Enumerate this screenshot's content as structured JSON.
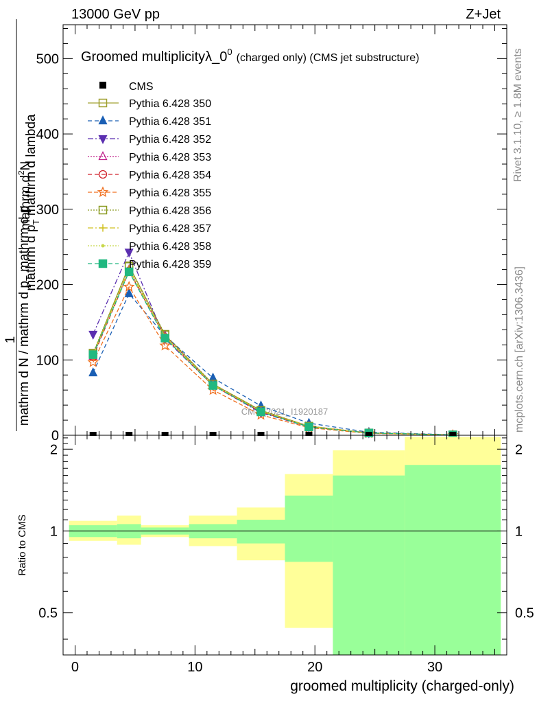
{
  "header": {
    "left": "13000 GeV pp",
    "right": "Z+Jet"
  },
  "side": {
    "rivet": "Rivet 3.1.10, ≥ 1.8M events",
    "mcplots": "mcplots.cern.ch [arXiv:1306.3436]"
  },
  "watermark": "CMS_2021_I1920187",
  "chart_data": [
    {
      "type": "line",
      "title": "Groomed multiplicityλ_0",
      "title_superscript": "0",
      "title_suffix": "(charged only) (CMS jet substructure)",
      "ylabel": {
        "line1": "1",
        "line2_num": "mathrm d",
        "line2_num_sup": "2",
        "line2_num_end": "N",
        "line2_den_a": "mathrm d p",
        "line2_den_sub": "T",
        "line2_den_b": " mathrm d lambda",
        "line3_a": "mathrm d N / mathrm d p",
        "line3_sub": "T",
        "line3_b": " mathrm d p"
      },
      "xlim": [
        -1,
        36
      ],
      "ylim": [
        0,
        545
      ],
      "yticks": [
        0,
        100,
        200,
        300,
        400,
        500
      ],
      "x": [
        1.5,
        4.5,
        7.5,
        11.5,
        15.5,
        19.5,
        24.5,
        31.5
      ],
      "cms": {
        "name": "CMS",
        "values": [
          0,
          0,
          0,
          0,
          0,
          0,
          0,
          0
        ],
        "color": "#000000"
      },
      "series": [
        {
          "name": "Pythia 6.428 350",
          "color": "#a0a030",
          "dash": "",
          "marker": "square-open",
          "values": [
            108,
            225,
            133,
            68,
            33,
            12,
            3,
            0.5
          ]
        },
        {
          "name": "Pythia 6.428 351",
          "color": "#1a5fb4",
          "dash": "6,4",
          "marker": "triangle-up",
          "values": [
            83,
            188,
            132,
            76,
            39,
            16,
            4,
            0.6
          ]
        },
        {
          "name": "Pythia 6.428 352",
          "color": "#5b2fb0",
          "dash": "8,3,2,3",
          "marker": "triangle-down",
          "values": [
            134,
            243,
            128,
            66,
            30,
            11,
            3,
            0.5
          ]
        },
        {
          "name": "Pythia 6.428 353",
          "color": "#c0208a",
          "dash": "2,2",
          "marker": "triangle-open",
          "values": [
            105,
            220,
            132,
            67,
            32,
            12,
            3,
            0.5
          ]
        },
        {
          "name": "Pythia 6.428 354",
          "color": "#d0202a",
          "dash": "6,4",
          "marker": "circle-open",
          "values": [
            104,
            218,
            130,
            66,
            31,
            11,
            3,
            0.5
          ]
        },
        {
          "name": "Pythia 6.428 355",
          "color": "#f07020",
          "dash": "6,3",
          "marker": "star-open",
          "values": [
            97,
            197,
            119,
            60,
            27,
            10,
            2.5,
            0.4
          ]
        },
        {
          "name": "Pythia 6.428 356",
          "color": "#8a9a20",
          "dash": "2,2",
          "marker": "square-open",
          "values": [
            109,
            224,
            134,
            68,
            33,
            12,
            3,
            0.5
          ]
        },
        {
          "name": "Pythia 6.428 357",
          "color": "#d0c020",
          "dash": "8,3,2,3",
          "marker": "cross",
          "values": [
            107,
            221,
            131,
            67,
            32,
            12,
            3,
            0.5
          ]
        },
        {
          "name": "Pythia 6.428 358",
          "color": "#c8d84a",
          "dash": "2,2",
          "marker": "dot",
          "values": [
            106,
            219,
            130,
            66,
            32,
            11,
            3,
            0.5
          ]
        },
        {
          "name": "Pythia 6.428 359",
          "color": "#20b880",
          "dash": "6,4",
          "marker": "square",
          "values": [
            107,
            217,
            129,
            66,
            31,
            11,
            3,
            0.5
          ]
        }
      ]
    },
    {
      "type": "area",
      "ylabel": "Ratio to CMS",
      "xlabel": "groomed multiplicity (charged-only)",
      "xlim": [
        -1,
        36
      ],
      "ylim": [
        0.35,
        2.25
      ],
      "xticks": [
        0,
        10,
        20,
        30
      ],
      "yticks": [
        0.5,
        1,
        2
      ],
      "reference": 1,
      "bins": [
        {
          "lo": -0.5,
          "hi": 3.5,
          "g": [
            0.95,
            1.05
          ],
          "y": [
            0.92,
            1.09
          ]
        },
        {
          "lo": 3.5,
          "hi": 5.5,
          "g": [
            0.94,
            1.06
          ],
          "y": [
            0.89,
            1.14
          ]
        },
        {
          "lo": 5.5,
          "hi": 9.5,
          "g": [
            0.97,
            1.03
          ],
          "y": [
            0.95,
            1.05
          ]
        },
        {
          "lo": 9.5,
          "hi": 13.5,
          "g": [
            0.94,
            1.06
          ],
          "y": [
            0.88,
            1.14
          ]
        },
        {
          "lo": 13.5,
          "hi": 17.5,
          "g": [
            0.9,
            1.1
          ],
          "y": [
            0.78,
            1.22
          ]
        },
        {
          "lo": 17.5,
          "hi": 21.5,
          "g": [
            0.77,
            1.35
          ],
          "y": [
            0.44,
            1.62
          ]
        },
        {
          "lo": 21.5,
          "hi": 27.5,
          "g": [
            0.35,
            1.6
          ],
          "y": [
            0.35,
            1.98
          ]
        },
        {
          "lo": 27.5,
          "hi": 35.5,
          "g": [
            0.35,
            1.75
          ],
          "y": [
            0.35,
            2.22
          ]
        }
      ],
      "colors": {
        "green": "#99ff99",
        "yellow": "#ffff99"
      }
    }
  ]
}
